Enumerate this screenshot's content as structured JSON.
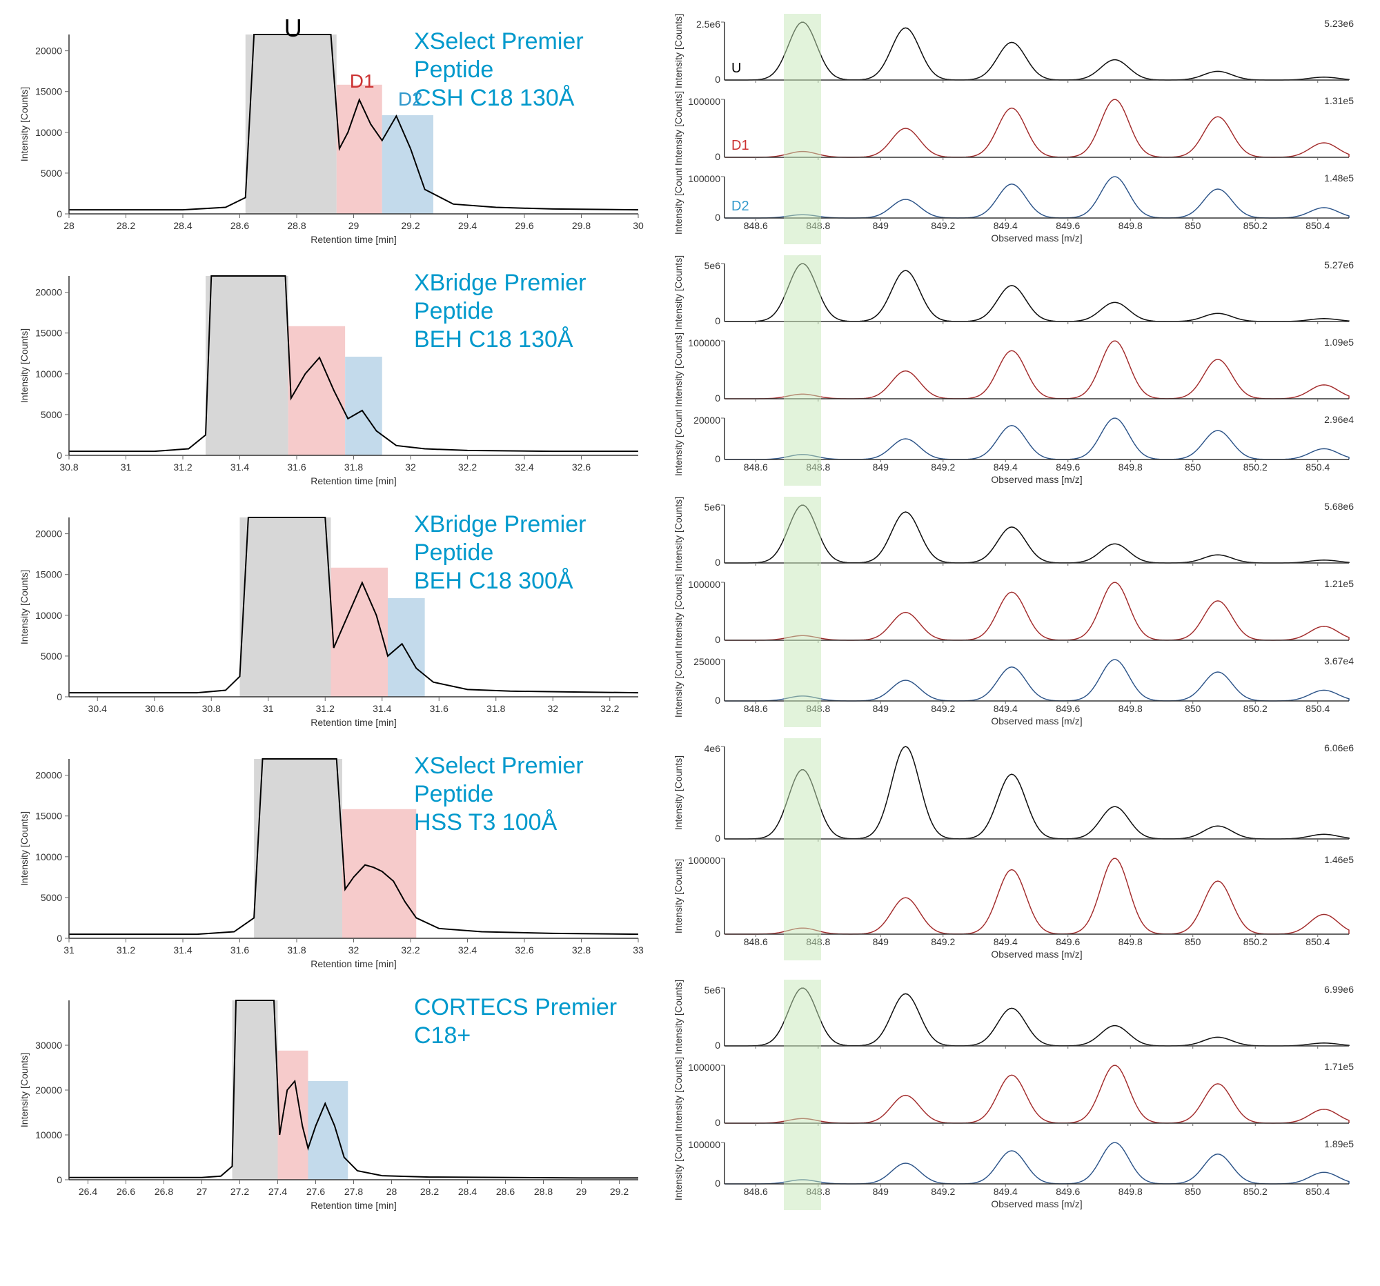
{
  "global": {
    "peak_labels": {
      "u": "U",
      "d1": "D1",
      "d2": "D2"
    },
    "ms_xaxis": {
      "label": "Observed mass [m/z]",
      "ticks": [
        848.6,
        848.8,
        849,
        849.2,
        849.4,
        849.6,
        849.8,
        850,
        850.2,
        850.4
      ],
      "xlim": [
        848.5,
        850.5
      ]
    },
    "chrom_yaxis_label": "Intensity [Counts]",
    "chrom_xaxis_label": "Retention time [min]",
    "ms_yaxis_label": "Intensity [Counts]",
    "colors": {
      "u_line": "#000000",
      "d1_line": "#cc3333",
      "d2_line": "#3366aa",
      "grey_highlight": "#d0d0d0",
      "pink_highlight": "#f4c2c2",
      "blue_highlight": "#b8d4e8",
      "green_band": "#c5e8b7",
      "title": "#0099cc",
      "axis": "#333333"
    },
    "ms_peaks": [
      848.75,
      849.08,
      849.42,
      849.75,
      850.08,
      850.42
    ]
  },
  "panels": [
    {
      "title": "XSelect Premier Peptide\nCSH C18 130Å",
      "chrom": {
        "xlim": [
          28,
          30
        ],
        "xticks": [
          28,
          28.2,
          28.4,
          28.6,
          28.8,
          29,
          29.2,
          29.4,
          29.6,
          29.8,
          30
        ],
        "ylim": [
          0,
          22000
        ],
        "yticks": [
          0,
          5000,
          10000,
          15000,
          20000
        ],
        "highlights": {
          "grey": [
            28.62,
            28.94
          ],
          "pink": [
            28.94,
            29.1
          ],
          "blue": [
            29.1,
            29.28
          ]
        },
        "trace": [
          [
            28,
            500
          ],
          [
            28.4,
            500
          ],
          [
            28.55,
            800
          ],
          [
            28.62,
            2000
          ],
          [
            28.65,
            22000
          ],
          [
            28.7,
            22000
          ],
          [
            28.85,
            22000
          ],
          [
            28.92,
            22000
          ],
          [
            28.95,
            8000
          ],
          [
            28.98,
            10000
          ],
          [
            29.02,
            14000
          ],
          [
            29.06,
            11000
          ],
          [
            29.1,
            9000
          ],
          [
            29.15,
            12000
          ],
          [
            29.2,
            8000
          ],
          [
            29.25,
            3000
          ],
          [
            29.35,
            1200
          ],
          [
            29.5,
            800
          ],
          [
            29.7,
            600
          ],
          [
            30,
            500
          ]
        ]
      },
      "ms": [
        {
          "label": "U",
          "color": "#000000",
          "ymax": "2.5e6",
          "note": "5.23e6",
          "heights": [
            1.0,
            0.9,
            0.65,
            0.35,
            0.15,
            0.05
          ],
          "monoOffset": 0
        },
        {
          "label": "D1",
          "color": "#cc3333",
          "ymax": "100000",
          "note": "1.31e5",
          "heights": [
            0.1,
            0.5,
            0.85,
            1.0,
            0.7,
            0.25
          ],
          "monoOffset": 1
        },
        {
          "label": "D2",
          "color": "#3366aa",
          "ymax": "100000",
          "note": "1.48e5",
          "heights": [
            0.08,
            0.45,
            0.82,
            1.0,
            0.7,
            0.25
          ],
          "monoOffset": 1
        }
      ]
    },
    {
      "title": "XBridge Premier Peptide\nBEH C18 130Å",
      "chrom": {
        "xlim": [
          30.8,
          32.8
        ],
        "xticks": [
          30.8,
          31,
          31.2,
          31.4,
          31.6,
          31.8,
          32,
          32.2,
          32.4,
          32.6
        ],
        "ylim": [
          0,
          22000
        ],
        "yticks": [
          0,
          5000,
          10000,
          15000,
          20000
        ],
        "highlights": {
          "grey": [
            31.28,
            31.57
          ],
          "pink": [
            31.57,
            31.77
          ],
          "blue": [
            31.77,
            31.9
          ]
        },
        "trace": [
          [
            30.8,
            500
          ],
          [
            31.1,
            500
          ],
          [
            31.22,
            800
          ],
          [
            31.28,
            2500
          ],
          [
            31.3,
            22000
          ],
          [
            31.35,
            22000
          ],
          [
            31.5,
            22000
          ],
          [
            31.56,
            22000
          ],
          [
            31.58,
            7000
          ],
          [
            31.63,
            10000
          ],
          [
            31.68,
            12000
          ],
          [
            31.73,
            8000
          ],
          [
            31.78,
            4500
          ],
          [
            31.83,
            5500
          ],
          [
            31.88,
            3000
          ],
          [
            31.95,
            1200
          ],
          [
            32.05,
            800
          ],
          [
            32.2,
            600
          ],
          [
            32.5,
            500
          ],
          [
            32.8,
            500
          ]
        ]
      },
      "ms": [
        {
          "label": "",
          "color": "#000000",
          "ymax": "5e6",
          "note": "5.27e6",
          "heights": [
            1.0,
            0.88,
            0.62,
            0.33,
            0.14,
            0.05
          ],
          "monoOffset": 0
        },
        {
          "label": "",
          "color": "#cc3333",
          "ymax": "100000",
          "note": "1.09e5",
          "heights": [
            0.08,
            0.48,
            0.83,
            1.0,
            0.68,
            0.24
          ],
          "monoOffset": 1
        },
        {
          "label": "",
          "color": "#3366aa",
          "ymax": "20000",
          "note": "2.96e4",
          "heights": [
            0.12,
            0.5,
            0.82,
            1.0,
            0.7,
            0.26
          ],
          "monoOffset": 1
        }
      ]
    },
    {
      "title": "XBridge Premier Peptide\nBEH C18 300Å",
      "chrom": {
        "xlim": [
          30.3,
          32.3
        ],
        "xticks": [
          30.4,
          30.6,
          30.8,
          31,
          31.2,
          31.4,
          31.6,
          31.8,
          32,
          32.2
        ],
        "ylim": [
          0,
          22000
        ],
        "yticks": [
          0,
          5000,
          10000,
          15000,
          20000
        ],
        "highlights": {
          "grey": [
            30.9,
            31.22
          ],
          "pink": [
            31.22,
            31.42
          ],
          "blue": [
            31.42,
            31.55
          ]
        },
        "trace": [
          [
            30.3,
            500
          ],
          [
            30.75,
            500
          ],
          [
            30.85,
            800
          ],
          [
            30.9,
            2500
          ],
          [
            30.93,
            22000
          ],
          [
            31,
            22000
          ],
          [
            31.15,
            22000
          ],
          [
            31.2,
            22000
          ],
          [
            31.23,
            6000
          ],
          [
            31.28,
            10000
          ],
          [
            31.33,
            14000
          ],
          [
            31.38,
            10000
          ],
          [
            31.42,
            5000
          ],
          [
            31.47,
            6500
          ],
          [
            31.52,
            3500
          ],
          [
            31.58,
            1800
          ],
          [
            31.7,
            900
          ],
          [
            31.85,
            700
          ],
          [
            32.05,
            600
          ],
          [
            32.3,
            500
          ]
        ]
      },
      "ms": [
        {
          "label": "",
          "color": "#000000",
          "ymax": "5e6",
          "note": "5.68e6",
          "heights": [
            1.0,
            0.88,
            0.62,
            0.33,
            0.14,
            0.05
          ],
          "monoOffset": 0
        },
        {
          "label": "",
          "color": "#cc3333",
          "ymax": "100000",
          "note": "1.21e5",
          "heights": [
            0.08,
            0.48,
            0.83,
            1.0,
            0.68,
            0.24
          ],
          "monoOffset": 1
        },
        {
          "label": "",
          "color": "#3366aa",
          "ymax": "25000",
          "note": "3.67e4",
          "heights": [
            0.12,
            0.5,
            0.82,
            1.0,
            0.7,
            0.26
          ],
          "monoOffset": 1
        }
      ]
    },
    {
      "title": "XSelect Premier Peptide\nHSS T3 100Å",
      "chrom": {
        "xlim": [
          31,
          33
        ],
        "xticks": [
          31,
          31.2,
          31.4,
          31.6,
          31.8,
          32,
          32.2,
          32.4,
          32.6,
          32.8,
          33
        ],
        "ylim": [
          0,
          22000
        ],
        "yticks": [
          0,
          5000,
          10000,
          15000,
          20000
        ],
        "highlights": {
          "grey": [
            31.65,
            31.96
          ],
          "pink": [
            31.96,
            32.22
          ]
        },
        "trace": [
          [
            31,
            500
          ],
          [
            31.45,
            500
          ],
          [
            31.58,
            800
          ],
          [
            31.65,
            2500
          ],
          [
            31.68,
            22000
          ],
          [
            31.75,
            22000
          ],
          [
            31.88,
            22000
          ],
          [
            31.94,
            22000
          ],
          [
            31.97,
            6000
          ],
          [
            32.0,
            7500
          ],
          [
            32.04,
            9000
          ],
          [
            32.07,
            8700
          ],
          [
            32.1,
            8200
          ],
          [
            32.14,
            7000
          ],
          [
            32.18,
            4500
          ],
          [
            32.22,
            2500
          ],
          [
            32.3,
            1200
          ],
          [
            32.45,
            800
          ],
          [
            32.7,
            600
          ],
          [
            33,
            500
          ]
        ]
      },
      "ms": [
        {
          "label": "",
          "color": "#000000",
          "ymax": "4e6",
          "note": "6.06e6",
          "heights": [
            0.75,
            1.0,
            0.7,
            0.35,
            0.14,
            0.05
          ],
          "monoOffset": 0,
          "tall": true
        },
        {
          "label": "",
          "color": "#cc3333",
          "ymax": "100000",
          "note": "1.46e5",
          "heights": [
            0.08,
            0.48,
            0.85,
            1.0,
            0.7,
            0.26
          ],
          "monoOffset": 1,
          "tall": true
        }
      ]
    },
    {
      "title": "CORTECS Premier C18+",
      "chrom": {
        "xlim": [
          26.3,
          29.3
        ],
        "xticks": [
          26.6,
          27,
          27.4,
          27.8,
          28.2,
          28.6,
          29
        ],
        "xticks_extended": [
          26.4,
          26.6,
          26.8,
          27,
          27.2,
          27.4,
          27.6,
          27.8,
          28,
          28.2,
          28.4,
          28.6,
          28.8,
          29,
          29.2
        ],
        "ylim": [
          0,
          40000
        ],
        "yticks": [
          0,
          10000,
          20000,
          30000
        ],
        "highlights": {
          "grey": [
            27.16,
            27.4
          ],
          "pink": [
            27.4,
            27.56
          ],
          "blue": [
            27.56,
            27.77
          ]
        },
        "trace": [
          [
            26.3,
            500
          ],
          [
            27.0,
            500
          ],
          [
            27.1,
            800
          ],
          [
            27.16,
            3000
          ],
          [
            27.18,
            40000
          ],
          [
            27.25,
            40000
          ],
          [
            27.35,
            40000
          ],
          [
            27.38,
            40000
          ],
          [
            27.41,
            10000
          ],
          [
            27.45,
            20000
          ],
          [
            27.49,
            22000
          ],
          [
            27.53,
            12000
          ],
          [
            27.56,
            7000
          ],
          [
            27.6,
            12000
          ],
          [
            27.65,
            17000
          ],
          [
            27.7,
            12000
          ],
          [
            27.75,
            5000
          ],
          [
            27.82,
            2000
          ],
          [
            27.95,
            900
          ],
          [
            28.2,
            600
          ],
          [
            29.0,
            400
          ],
          [
            29.3,
            400
          ]
        ]
      },
      "ms": [
        {
          "label": "",
          "color": "#000000",
          "ymax": "5e6",
          "note": "6.99e6",
          "heights": [
            1.0,
            0.9,
            0.65,
            0.35,
            0.15,
            0.05
          ],
          "monoOffset": 0
        },
        {
          "label": "",
          "color": "#cc3333",
          "ymax": "100000",
          "note": "1.71e5",
          "heights": [
            0.08,
            0.48,
            0.83,
            1.0,
            0.68,
            0.24
          ],
          "monoOffset": 1
        },
        {
          "label": "",
          "color": "#3366aa",
          "ymax": "100000",
          "note": "1.89e5",
          "heights": [
            0.1,
            0.5,
            0.8,
            1.0,
            0.72,
            0.28
          ],
          "monoOffset": 1
        }
      ]
    }
  ]
}
